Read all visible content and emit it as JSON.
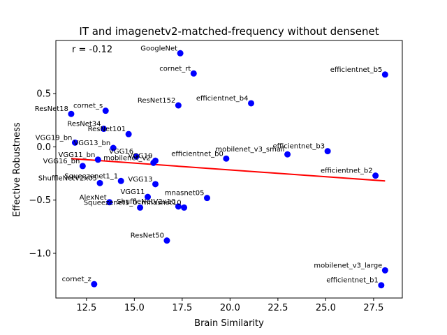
{
  "chart_data": {
    "type": "scatter",
    "title": "IT and imagenetv2-matched-frequency without densenet",
    "xlabel": "Brain Similarity",
    "ylabel": "Effective Robustness",
    "annotation": "r = -0.12",
    "xlim": [
      10.9,
      29.0
    ],
    "ylim": [
      -1.42,
      1.0
    ],
    "xticks": [
      12.5,
      15.0,
      17.5,
      20.0,
      22.5,
      25.0,
      27.5
    ],
    "xtick_labels": [
      "12.5",
      "15.0",
      "17.5",
      "20.0",
      "22.5",
      "25.0",
      "27.5"
    ],
    "yticks": [
      0.5,
      0.0,
      -0.5,
      -1.0
    ],
    "ytick_labels": [
      "0.5",
      "0.0",
      "−0.5",
      "−1.0"
    ],
    "point_color": "#0000ff",
    "line_color": "#ff0000",
    "grid": false,
    "trend_line": {
      "x": [
        11.7,
        28.1
      ],
      "y": [
        -0.11,
        -0.32
      ]
    },
    "points": [
      {
        "label": "GoogleNet",
        "x": 17.4,
        "y": 0.88
      },
      {
        "label": "cornet_rt",
        "x": 18.1,
        "y": 0.69
      },
      {
        "label": "efficientnet_b5",
        "x": 28.1,
        "y": 0.68
      },
      {
        "label": "ResNet152",
        "x": 17.3,
        "y": 0.39
      },
      {
        "label": "efficientnet_b4",
        "x": 21.1,
        "y": 0.41
      },
      {
        "label": "cornet_s",
        "x": 13.5,
        "y": 0.34
      },
      {
        "label": "ResNet18",
        "x": 11.7,
        "y": 0.31
      },
      {
        "label": "ResNet34",
        "x": 13.4,
        "y": 0.17
      },
      {
        "label": "ResNet101",
        "x": 14.7,
        "y": 0.12
      },
      {
        "label": "VGG19_bn",
        "x": 11.9,
        "y": 0.04
      },
      {
        "label": "VGG13_bn",
        "x": 13.9,
        "y": -0.01
      },
      {
        "label": "VGG16",
        "x": 15.1,
        "y": -0.09
      },
      {
        "label": "VGG19",
        "x": 16.1,
        "y": -0.13
      },
      {
        "label": "mobilenet_v2",
        "x": 16.0,
        "y": -0.15
      },
      {
        "label": "VGG11_bn",
        "x": 13.1,
        "y": -0.12
      },
      {
        "label": "VGG16_bn",
        "x": 12.3,
        "y": -0.18
      },
      {
        "label": "efficientnet_b0",
        "x": 19.8,
        "y": -0.11
      },
      {
        "label": "mobilenet_v3_small",
        "x": 23.0,
        "y": -0.07
      },
      {
        "label": "efficientnet_b3",
        "x": 25.1,
        "y": -0.04
      },
      {
        "label": "efficientnet_b2",
        "x": 27.6,
        "y": -0.27
      },
      {
        "label": "Squeezenet1_1",
        "x": 14.3,
        "y": -0.32
      },
      {
        "label": "ShuffleNetV2x05",
        "x": 13.2,
        "y": -0.34
      },
      {
        "label": "VGG13",
        "x": 16.1,
        "y": -0.35
      },
      {
        "label": "VGG11",
        "x": 15.7,
        "y": -0.47
      },
      {
        "label": "mnasnet05",
        "x": 18.8,
        "y": -0.48
      },
      {
        "label": "AlexNet",
        "x": 13.7,
        "y": -0.52
      },
      {
        "label": "Squeezenet1_0",
        "x": 15.3,
        "y": -0.57
      },
      {
        "label": "ShuffleNetV2x10",
        "x": 17.3,
        "y": -0.56
      },
      {
        "label": "mnasnet10",
        "x": 17.6,
        "y": -0.57
      },
      {
        "label": "ResNet50",
        "x": 16.7,
        "y": -0.88
      },
      {
        "label": "mobilenet_v3_large",
        "x": 28.1,
        "y": -1.16
      },
      {
        "label": "cornet_z",
        "x": 12.9,
        "y": -1.29
      },
      {
        "label": "efficientnet_b1",
        "x": 27.9,
        "y": -1.3
      }
    ]
  }
}
